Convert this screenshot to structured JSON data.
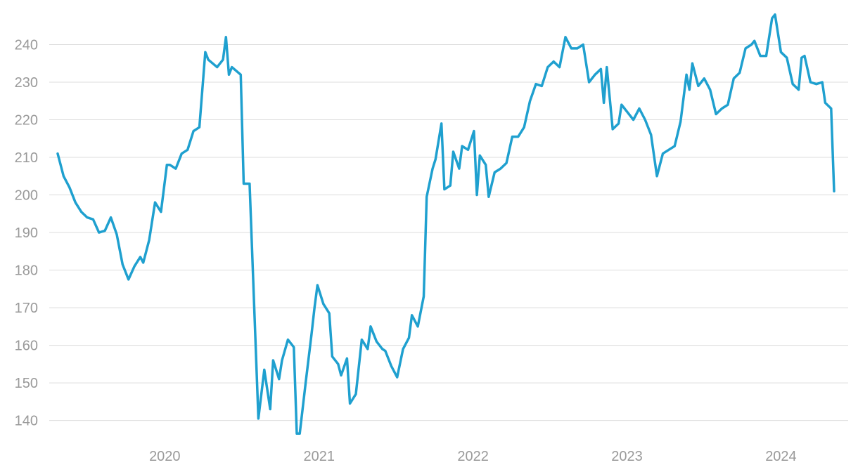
{
  "chart_data": {
    "type": "line",
    "title": "",
    "xlabel": "",
    "ylabel": "",
    "x_range": [
      "2019-04-22",
      "2024-05-06"
    ],
    "ylim": [
      136,
      250
    ],
    "y_ticks": [
      140,
      150,
      160,
      170,
      180,
      190,
      200,
      210,
      220,
      230,
      240
    ],
    "x_ticks": [
      {
        "label": "2020",
        "date": "2020-01-01"
      },
      {
        "label": "2021",
        "date": "2021-01-01"
      },
      {
        "label": "2022",
        "date": "2022-01-01"
      },
      {
        "label": "2023",
        "date": "2023-01-01"
      },
      {
        "label": "2024",
        "date": "2024-01-01"
      }
    ],
    "grid": "horizontal",
    "legend": "none",
    "colors": {
      "line": "#1fa0cf",
      "grid": "#dcdcdc",
      "tick_text": "#9a9a9a"
    },
    "series": [
      {
        "points": [
          [
            "2019-04-22",
            211
          ],
          [
            "2019-05-06",
            205
          ],
          [
            "2019-05-20",
            202
          ],
          [
            "2019-06-03",
            198
          ],
          [
            "2019-06-17",
            195.5
          ],
          [
            "2019-07-01",
            194
          ],
          [
            "2019-07-15",
            193.5
          ],
          [
            "2019-07-29",
            190
          ],
          [
            "2019-08-12",
            190.5
          ],
          [
            "2019-08-26",
            194
          ],
          [
            "2019-09-09",
            189.5
          ],
          [
            "2019-09-23",
            181.5
          ],
          [
            "2019-10-07",
            177.5
          ],
          [
            "2019-10-21",
            181
          ],
          [
            "2019-11-04",
            183.5
          ],
          [
            "2019-11-11",
            182
          ],
          [
            "2019-11-25",
            188
          ],
          [
            "2019-12-09",
            198
          ],
          [
            "2019-12-23",
            195.5
          ],
          [
            "2020-01-06",
            208
          ],
          [
            "2020-01-13",
            208
          ],
          [
            "2020-01-27",
            207
          ],
          [
            "2020-02-10",
            211
          ],
          [
            "2020-02-24",
            212
          ],
          [
            "2020-03-09",
            217
          ],
          [
            "2020-03-23",
            218
          ],
          [
            "2020-04-06",
            238
          ],
          [
            "2020-04-13",
            236
          ],
          [
            "2020-05-04",
            234
          ],
          [
            "2020-05-18",
            236
          ],
          [
            "2020-05-25",
            242
          ],
          [
            "2020-06-01",
            232
          ],
          [
            "2020-06-08",
            234
          ],
          [
            "2020-06-29",
            232
          ],
          [
            "2020-07-06",
            203
          ],
          [
            "2020-07-20",
            203
          ],
          [
            "2020-08-10",
            140.5
          ],
          [
            "2020-08-24",
            153.5
          ],
          [
            "2020-09-07",
            143
          ],
          [
            "2020-09-14",
            156
          ],
          [
            "2020-09-28",
            151
          ],
          [
            "2020-10-05",
            156
          ],
          [
            "2020-10-19",
            161.5
          ],
          [
            "2020-11-02",
            159.5
          ],
          [
            "2020-11-09",
            136.5
          ],
          [
            "2020-11-16",
            136.5
          ],
          [
            "2020-11-30",
            150
          ],
          [
            "2020-12-14",
            163
          ],
          [
            "2020-12-21",
            170
          ],
          [
            "2020-12-28",
            176
          ],
          [
            "2021-01-11",
            171
          ],
          [
            "2021-01-25",
            168.5
          ],
          [
            "2021-02-01",
            157
          ],
          [
            "2021-02-15",
            155
          ],
          [
            "2021-02-22",
            152
          ],
          [
            "2021-03-08",
            156.5
          ],
          [
            "2021-03-15",
            144.5
          ],
          [
            "2021-03-29",
            147
          ],
          [
            "2021-04-12",
            161.5
          ],
          [
            "2021-04-26",
            159
          ],
          [
            "2021-05-03",
            165
          ],
          [
            "2021-05-17",
            161
          ],
          [
            "2021-05-31",
            159
          ],
          [
            "2021-06-07",
            158.5
          ],
          [
            "2021-06-21",
            154.5
          ],
          [
            "2021-07-05",
            151.5
          ],
          [
            "2021-07-19",
            159
          ],
          [
            "2021-08-02",
            162
          ],
          [
            "2021-08-09",
            168
          ],
          [
            "2021-08-23",
            165
          ],
          [
            "2021-09-06",
            173
          ],
          [
            "2021-09-13",
            199.5
          ],
          [
            "2021-09-27",
            207
          ],
          [
            "2021-10-04",
            209.5
          ],
          [
            "2021-10-18",
            219
          ],
          [
            "2021-10-25",
            201.5
          ],
          [
            "2021-11-08",
            202.5
          ],
          [
            "2021-11-15",
            211.5
          ],
          [
            "2021-11-29",
            207
          ],
          [
            "2021-12-06",
            213
          ],
          [
            "2021-12-20",
            212
          ],
          [
            "2022-01-03",
            217
          ],
          [
            "2022-01-10",
            200
          ],
          [
            "2022-01-17",
            210.5
          ],
          [
            "2022-01-31",
            208
          ],
          [
            "2022-02-07",
            199.5
          ],
          [
            "2022-02-21",
            206
          ],
          [
            "2022-03-07",
            207
          ],
          [
            "2022-03-21",
            208.5
          ],
          [
            "2022-04-04",
            215.5
          ],
          [
            "2022-04-18",
            215.5
          ],
          [
            "2022-05-02",
            218
          ],
          [
            "2022-05-16",
            225
          ],
          [
            "2022-05-30",
            229.5
          ],
          [
            "2022-06-13",
            229
          ],
          [
            "2022-06-27",
            234
          ],
          [
            "2022-07-11",
            235.5
          ],
          [
            "2022-07-25",
            234
          ],
          [
            "2022-08-08",
            242
          ],
          [
            "2022-08-22",
            239
          ],
          [
            "2022-09-05",
            239
          ],
          [
            "2022-09-19",
            240
          ],
          [
            "2022-10-03",
            230
          ],
          [
            "2022-10-17",
            232
          ],
          [
            "2022-10-31",
            233.5
          ],
          [
            "2022-11-07",
            224.5
          ],
          [
            "2022-11-14",
            234
          ],
          [
            "2022-11-28",
            217.5
          ],
          [
            "2022-12-12",
            219
          ],
          [
            "2022-12-19",
            224
          ],
          [
            "2023-01-02",
            222
          ],
          [
            "2023-01-16",
            220
          ],
          [
            "2023-01-30",
            223
          ],
          [
            "2023-02-13",
            220
          ],
          [
            "2023-02-27",
            216
          ],
          [
            "2023-03-13",
            205
          ],
          [
            "2023-03-27",
            211
          ],
          [
            "2023-04-10",
            212
          ],
          [
            "2023-04-24",
            213
          ],
          [
            "2023-05-08",
            219.5
          ],
          [
            "2023-05-22",
            232
          ],
          [
            "2023-05-29",
            228
          ],
          [
            "2023-06-05",
            235
          ],
          [
            "2023-06-19",
            229
          ],
          [
            "2023-07-03",
            231
          ],
          [
            "2023-07-17",
            228
          ],
          [
            "2023-07-31",
            221.5
          ],
          [
            "2023-08-14",
            223
          ],
          [
            "2023-08-28",
            224
          ],
          [
            "2023-09-11",
            231
          ],
          [
            "2023-09-25",
            232.5
          ],
          [
            "2023-10-09",
            239
          ],
          [
            "2023-10-23",
            240
          ],
          [
            "2023-10-30",
            241
          ],
          [
            "2023-11-13",
            237
          ],
          [
            "2023-11-27",
            237
          ],
          [
            "2023-12-11",
            247
          ],
          [
            "2023-12-18",
            248
          ],
          [
            "2024-01-01",
            238
          ],
          [
            "2024-01-15",
            236.5
          ],
          [
            "2024-01-29",
            229.5
          ],
          [
            "2024-02-12",
            228
          ],
          [
            "2024-02-19",
            236.5
          ],
          [
            "2024-02-26",
            237
          ],
          [
            "2024-03-11",
            230
          ],
          [
            "2024-03-25",
            229.5
          ],
          [
            "2024-04-08",
            230
          ],
          [
            "2024-04-15",
            224.5
          ],
          [
            "2024-04-29",
            223
          ],
          [
            "2024-05-06",
            201
          ]
        ]
      }
    ]
  }
}
